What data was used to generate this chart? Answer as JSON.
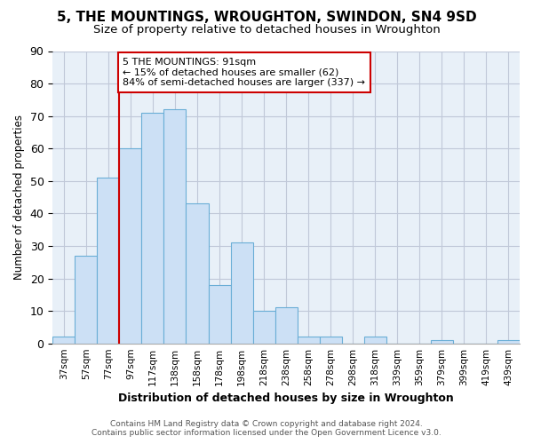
{
  "title1": "5, THE MOUNTINGS, WROUGHTON, SWINDON, SN4 9SD",
  "title2": "Size of property relative to detached houses in Wroughton",
  "xlabel": "Distribution of detached houses by size in Wroughton",
  "ylabel": "Number of detached properties",
  "footer1": "Contains HM Land Registry data © Crown copyright and database right 2024.",
  "footer2": "Contains public sector information licensed under the Open Government Licence v3.0.",
  "annotation_line1": "5 THE MOUNTINGS: 91sqm",
  "annotation_line2": "← 15% of detached houses are smaller (62)",
  "annotation_line3": "84% of semi-detached houses are larger (337) →",
  "bar_labels": [
    "37sqm",
    "57sqm",
    "77sqm",
    "97sqm",
    "117sqm",
    "138sqm",
    "158sqm",
    "178sqm",
    "198sqm",
    "218sqm",
    "238sqm",
    "258sqm",
    "278sqm",
    "298sqm",
    "318sqm",
    "339sqm",
    "359sqm",
    "379sqm",
    "399sqm",
    "419sqm",
    "439sqm"
  ],
  "bar_values": [
    2,
    27,
    51,
    60,
    71,
    72,
    43,
    18,
    31,
    10,
    11,
    2,
    2,
    0,
    2,
    0,
    0,
    1,
    0,
    0,
    1
  ],
  "bar_color": "#cce0f5",
  "bar_edge_color": "#6aaed6",
  "vline_color": "#cc0000",
  "annotation_box_color": "#cc0000",
  "background_color": "#ffffff",
  "plot_bg_color": "#e8f0f8",
  "grid_color": "#c0c8d8",
  "ylim": [
    0,
    90
  ],
  "yticks": [
    0,
    10,
    20,
    30,
    40,
    50,
    60,
    70,
    80,
    90
  ],
  "vline_x_idx": 3,
  "fig_width": 6.0,
  "fig_height": 5.0,
  "dpi": 100
}
